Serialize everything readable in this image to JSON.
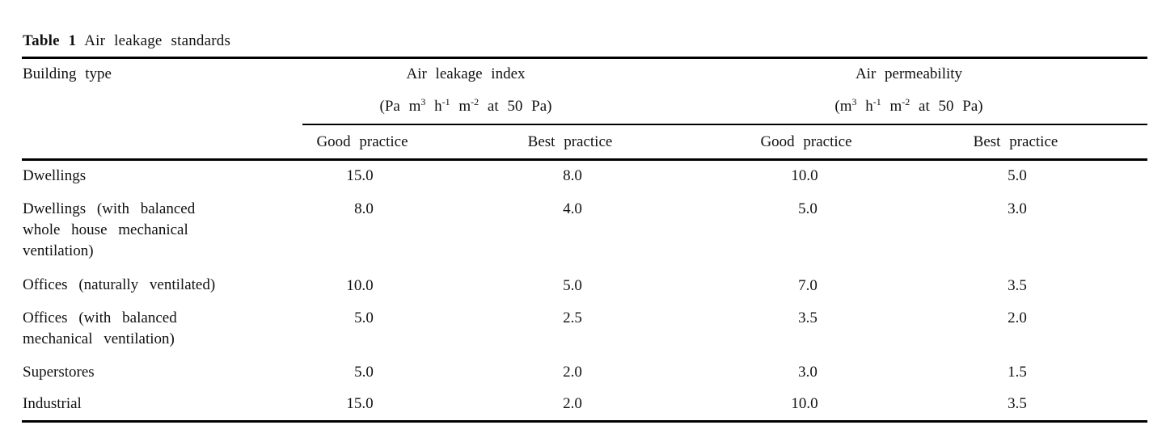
{
  "caption": {
    "label": "Table 1",
    "text": "Air leakage standards"
  },
  "header": {
    "building_type": "Building type",
    "group1": {
      "title": "Air leakage index",
      "unit_parts": [
        "(Pa m",
        "3",
        " h",
        "-1",
        " m",
        "-2",
        " at 50 Pa)"
      ]
    },
    "group2": {
      "title": "Air permeability",
      "unit_parts": [
        "(m",
        "3",
        " h",
        "-1",
        " m",
        "-2",
        " at 50 Pa)"
      ]
    },
    "subheaders": [
      "Good practice",
      "Best practice",
      "Good practice",
      "Best practice"
    ]
  },
  "rows": [
    {
      "label": "Dwellings",
      "values": [
        "15.0",
        "8.0",
        "10.0",
        "5.0"
      ]
    },
    {
      "label": "Dwellings (with balanced whole house mechanical ventilation)",
      "label_lines": [
        "Dwellings (with balanced",
        "whole house mechanical",
        "ventilation)"
      ],
      "values": [
        "8.0",
        "4.0",
        "5.0",
        "3.0"
      ]
    },
    {
      "label": "Offices (naturally ventilated)",
      "values": [
        "10.0",
        "5.0",
        "7.0",
        "3.5"
      ]
    },
    {
      "label": "Offices (with balanced mechanical ventilation)",
      "label_lines": [
        "Offices (with balanced",
        "mechanical ventilation)"
      ],
      "values": [
        "5.0",
        "2.5",
        "3.5",
        "2.0"
      ]
    },
    {
      "label": "Superstores",
      "values": [
        "5.0",
        "2.0",
        "3.0",
        "1.5"
      ]
    },
    {
      "label": "Industrial",
      "values": [
        "15.0",
        "2.0",
        "10.0",
        "3.5"
      ]
    }
  ]
}
